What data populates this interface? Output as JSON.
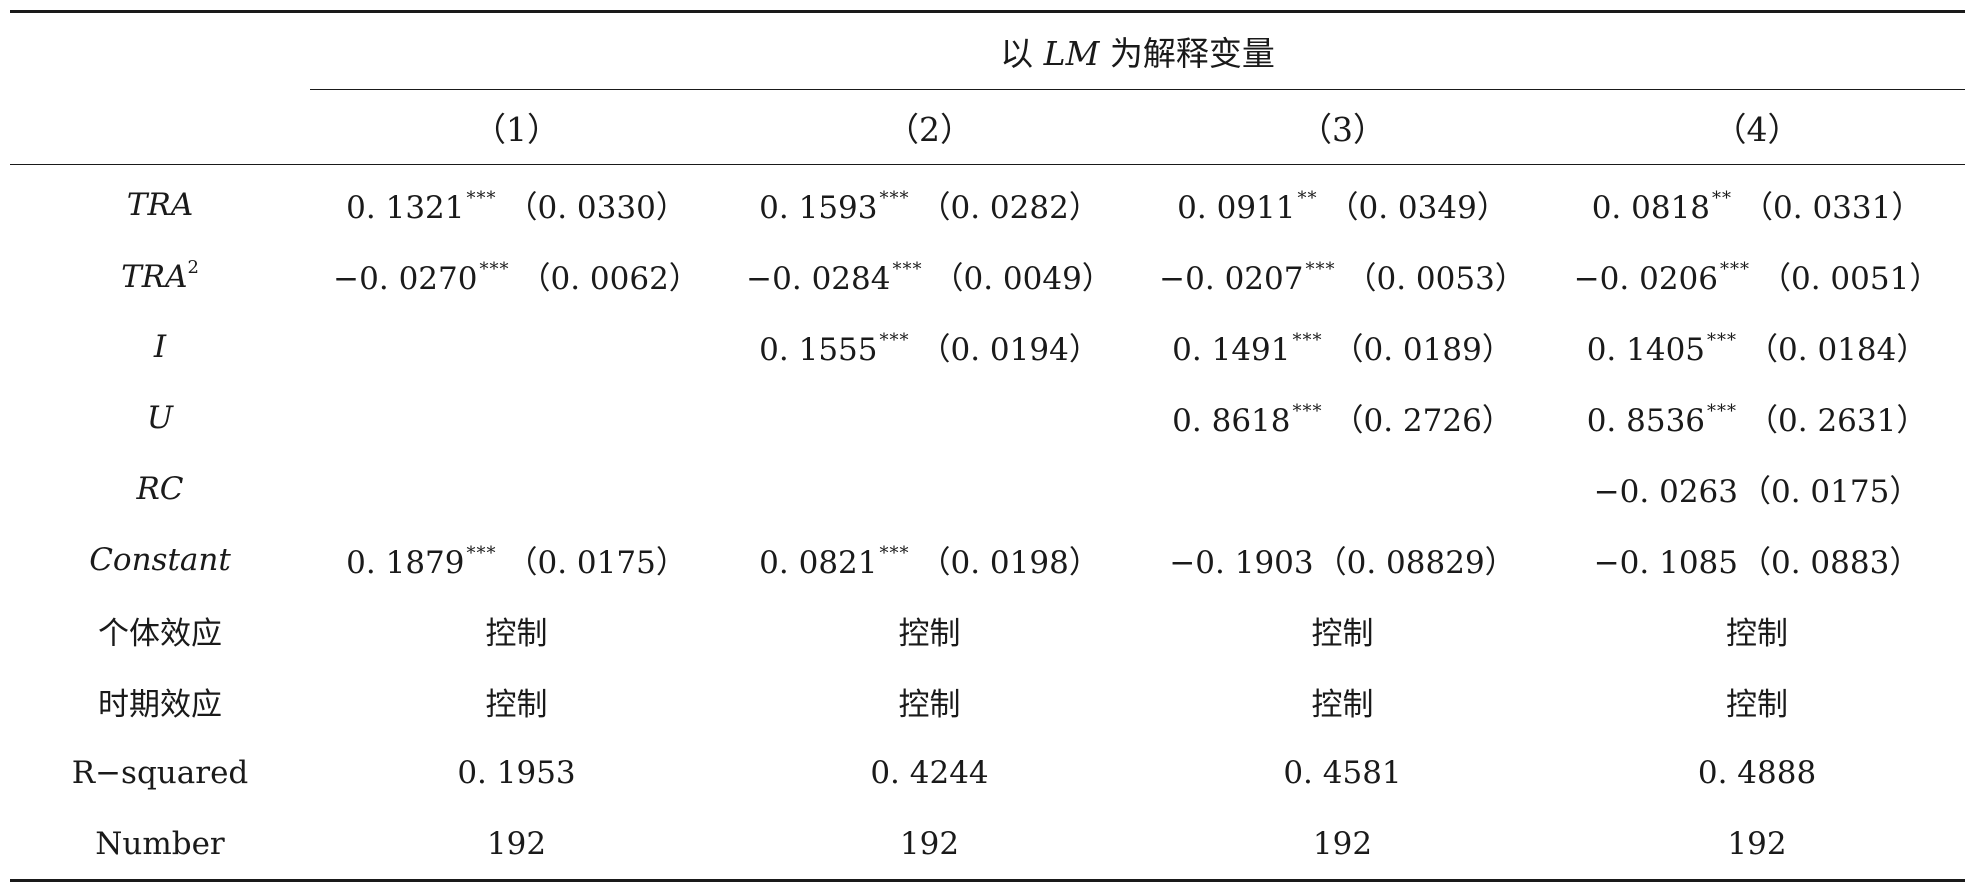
{
  "header": {
    "group_prefix": "以 ",
    "group_var": "LM",
    "group_suffix": " 为解释变量",
    "columns": [
      "（1）",
      "（2）",
      "（3）",
      "（4）"
    ]
  },
  "rows": [
    {
      "label": "TRA",
      "italic": true,
      "sup": "",
      "cells": [
        {
          "coef": "0. 1321",
          "stars": "***",
          "se": "（0. 0330）"
        },
        {
          "coef": "0. 1593",
          "stars": "***",
          "se": "（0. 0282）"
        },
        {
          "coef": "0. 0911",
          "stars": "**",
          "se": "（0. 0349）"
        },
        {
          "coef": "0. 0818",
          "stars": "**",
          "se": "（0. 0331）"
        }
      ]
    },
    {
      "label": "TRA",
      "italic": true,
      "sup": "2",
      "cells": [
        {
          "coef": "−0. 0270",
          "stars": "***",
          "se": "（0. 0062）"
        },
        {
          "coef": "−0. 0284",
          "stars": "***",
          "se": "（0. 0049）"
        },
        {
          "coef": "−0. 0207",
          "stars": "***",
          "se": "（0. 0053）"
        },
        {
          "coef": "−0. 0206",
          "stars": "***",
          "se": "（0. 0051）"
        }
      ]
    },
    {
      "label": "I",
      "italic": true,
      "sup": "",
      "cells": [
        {
          "coef": "",
          "stars": "",
          "se": ""
        },
        {
          "coef": "0. 1555",
          "stars": "***",
          "se": "（0. 0194）"
        },
        {
          "coef": "0. 1491",
          "stars": "***",
          "se": "（0. 0189）"
        },
        {
          "coef": "0. 1405",
          "stars": "***",
          "se": "（0. 0184）"
        }
      ]
    },
    {
      "label": "U",
      "italic": true,
      "sup": "",
      "cells": [
        {
          "coef": "",
          "stars": "",
          "se": ""
        },
        {
          "coef": "",
          "stars": "",
          "se": ""
        },
        {
          "coef": "0. 8618",
          "stars": "***",
          "se": "（0. 2726）"
        },
        {
          "coef": "0. 8536",
          "stars": "***",
          "se": "（0. 2631）"
        }
      ]
    },
    {
      "label": "RC",
      "italic": true,
      "sup": "",
      "cells": [
        {
          "coef": "",
          "stars": "",
          "se": ""
        },
        {
          "coef": "",
          "stars": "",
          "se": ""
        },
        {
          "coef": "",
          "stars": "",
          "se": ""
        },
        {
          "coef": "−0. 0263",
          "stars": "",
          "se": "（0. 0175）"
        }
      ]
    },
    {
      "label": "Constant",
      "italic": true,
      "sup": "",
      "cells": [
        {
          "coef": "0. 1879",
          "stars": "***",
          "se": "（0. 0175）"
        },
        {
          "coef": "0. 0821",
          "stars": "***",
          "se": "（0. 0198）"
        },
        {
          "coef": "−0. 1903",
          "stars": "",
          "se": "（0. 08829）"
        },
        {
          "coef": "−0. 1085",
          "stars": "",
          "se": "（0. 0883）"
        }
      ]
    },
    {
      "label": "个体效应",
      "italic": false,
      "sup": "",
      "cells": [
        {
          "coef": "控制",
          "stars": "",
          "se": ""
        },
        {
          "coef": "控制",
          "stars": "",
          "se": ""
        },
        {
          "coef": "控制",
          "stars": "",
          "se": ""
        },
        {
          "coef": "控制",
          "stars": "",
          "se": ""
        }
      ]
    },
    {
      "label": "时期效应",
      "italic": false,
      "sup": "",
      "cells": [
        {
          "coef": "控制",
          "stars": "",
          "se": ""
        },
        {
          "coef": "控制",
          "stars": "",
          "se": ""
        },
        {
          "coef": "控制",
          "stars": "",
          "se": ""
        },
        {
          "coef": "控制",
          "stars": "",
          "se": ""
        }
      ]
    },
    {
      "label": "R−squared",
      "italic": false,
      "sup": "",
      "cells": [
        {
          "coef": "0. 1953",
          "stars": "",
          "se": ""
        },
        {
          "coef": "0. 4244",
          "stars": "",
          "se": ""
        },
        {
          "coef": "0. 4581",
          "stars": "",
          "se": ""
        },
        {
          "coef": "0. 4888",
          "stars": "",
          "se": ""
        }
      ]
    },
    {
      "label": "Number",
      "italic": false,
      "sup": "",
      "cells": [
        {
          "coef": "192",
          "stars": "",
          "se": ""
        },
        {
          "coef": "192",
          "stars": "",
          "se": ""
        },
        {
          "coef": "192",
          "stars": "",
          "se": ""
        },
        {
          "coef": "192",
          "stars": "",
          "se": ""
        }
      ]
    }
  ]
}
